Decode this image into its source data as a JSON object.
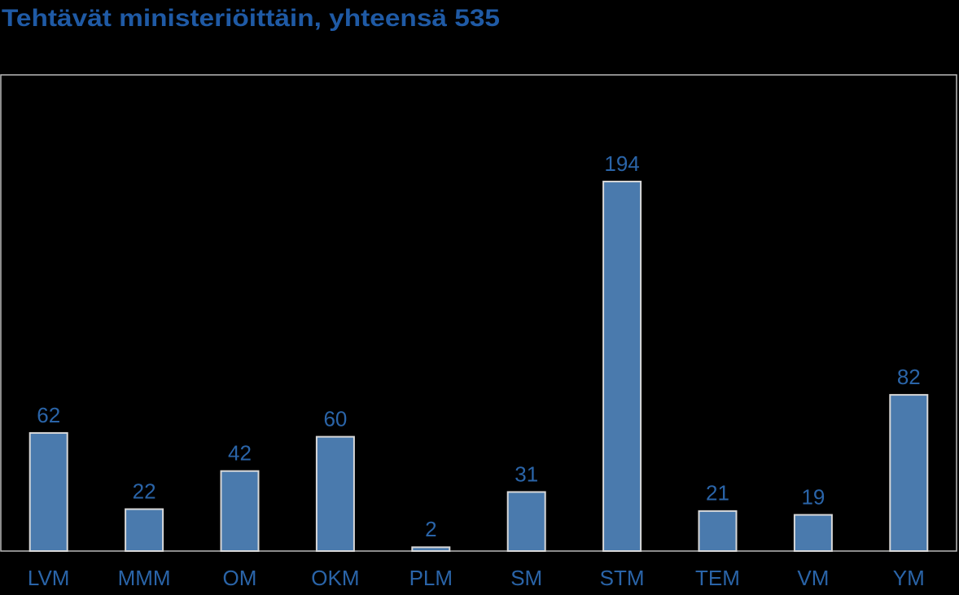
{
  "chart_data": {
    "type": "bar",
    "title": "Tehtävät ministeriöittäin, yhteensä 535",
    "categories": [
      "LVM",
      "MMM",
      "OM",
      "OKM",
      "PLM",
      "SM",
      "STM",
      "TEM",
      "VM",
      "YM"
    ],
    "values": [
      62,
      22,
      42,
      60,
      2,
      31,
      194,
      21,
      19,
      82
    ],
    "color": "#4a7aad",
    "ylim": [
      0,
      250
    ]
  }
}
